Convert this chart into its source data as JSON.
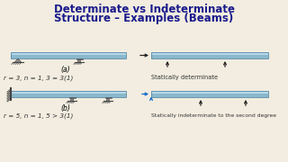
{
  "title_line1": "Determinate vs Indeterminate",
  "title_line2": "Structure – Examples (Beams)",
  "title_color": "#1a1a8c",
  "title_fontsize": 8.5,
  "title_fontweight": "bold",
  "bg_color": "#f2ede0",
  "beam_color_top": "#b8d8e8",
  "beam_color_bot": "#8ab8cc",
  "beam_edge_color": "#5588aa",
  "label_a": "(a)",
  "label_b": "(b)",
  "eq_a": "r = 3, n = 1, 3 = 3(1)",
  "eq_b": "r = 5, n = 1, 5 > 3(1)",
  "text_a": "Statically determinate",
  "text_b": "Statically indeterminate to the second degree",
  "text_color": "#333333",
  "support_color": "#888888",
  "arrow_color": "#222222",
  "blue_arrow_color": "#1166cc"
}
